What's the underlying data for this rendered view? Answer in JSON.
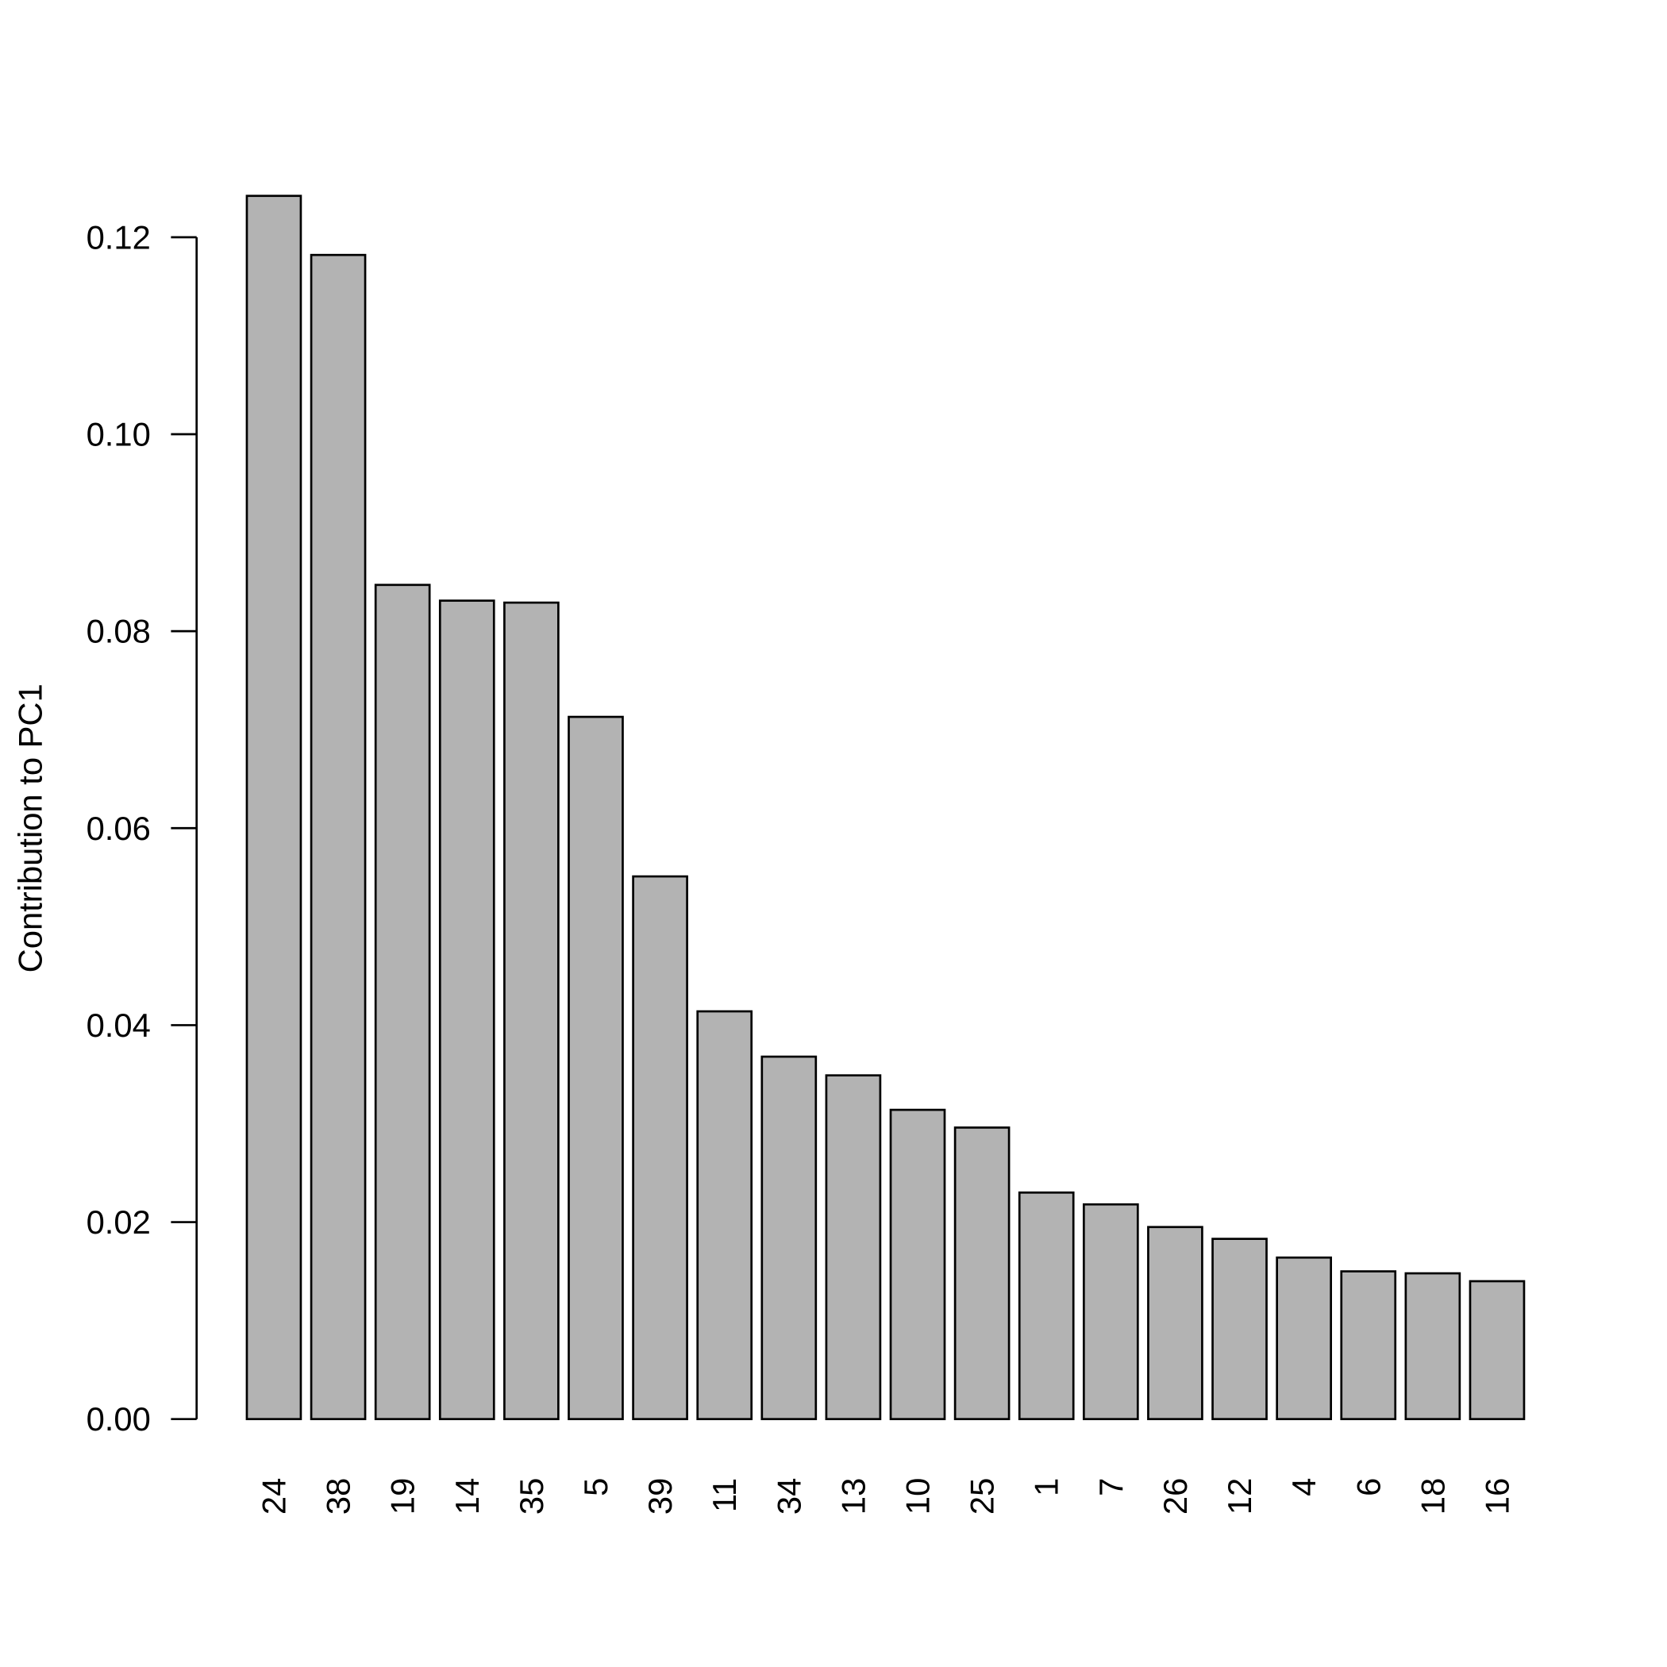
{
  "chart_data": {
    "type": "bar",
    "title": "",
    "xlabel": "",
    "ylabel": "Contribution to PC1",
    "ylim": [
      0,
      0.124
    ],
    "yticks": [
      "0.00",
      "0.02",
      "0.04",
      "0.06",
      "0.08",
      "0.10",
      "0.12"
    ],
    "ytick_values": [
      0,
      0.02,
      0.04,
      0.06,
      0.08,
      0.1,
      0.12
    ],
    "categories": [
      "24",
      "38",
      "19",
      "14",
      "35",
      "5",
      "39",
      "11",
      "34",
      "13",
      "10",
      "25",
      "1",
      "7",
      "26",
      "12",
      "4",
      "6",
      "18",
      "16"
    ],
    "values": [
      0.1242,
      0.1182,
      0.0847,
      0.0831,
      0.0829,
      0.0713,
      0.0551,
      0.0414,
      0.0368,
      0.0349,
      0.0314,
      0.0296,
      0.023,
      0.0218,
      0.0195,
      0.0183,
      0.0164,
      0.015,
      0.0148,
      0.014
    ],
    "bar_color": "#b3b3b3",
    "bar_border_color": "#000000",
    "grid": false,
    "legend": "none"
  }
}
